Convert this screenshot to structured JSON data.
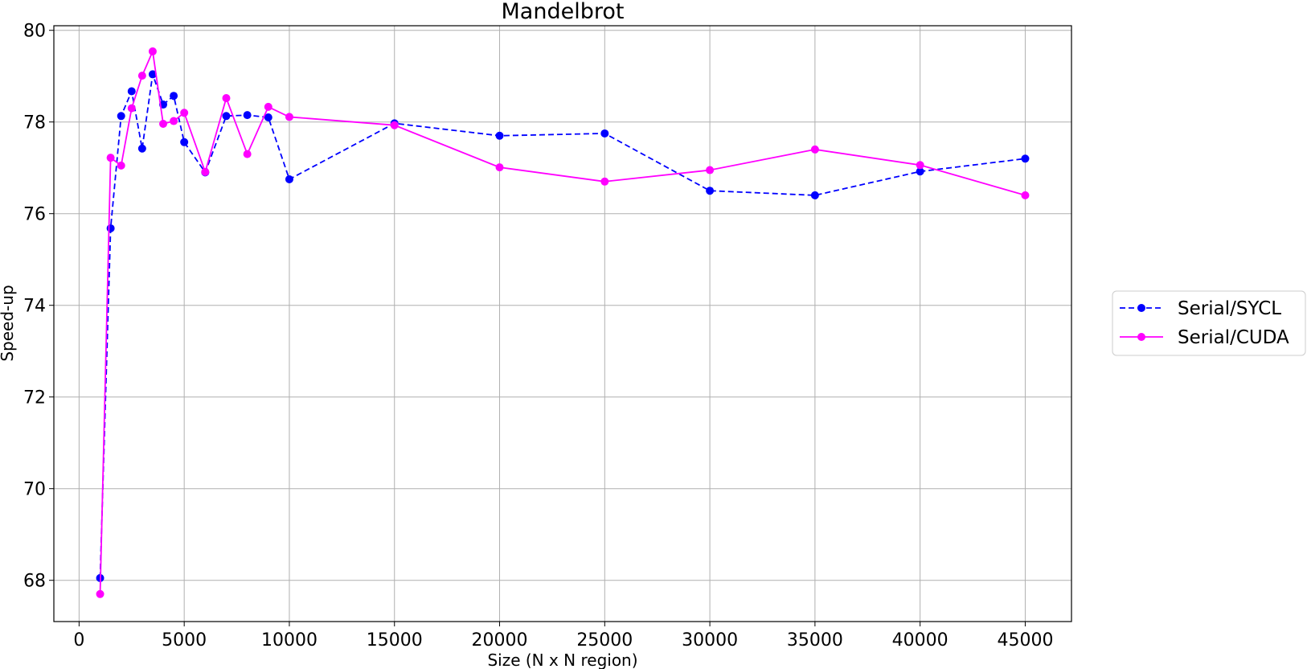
{
  "chart_data": {
    "type": "line",
    "title": "Mandelbrot",
    "xlabel": "Size (N x N region)",
    "ylabel": "Speed-up",
    "xlim": [
      -1200,
      47200
    ],
    "ylim": [
      67.1,
      80.1
    ],
    "xticks": [
      0,
      5000,
      10000,
      15000,
      20000,
      25000,
      30000,
      35000,
      40000,
      45000
    ],
    "yticks": [
      68,
      70,
      72,
      74,
      76,
      78,
      80
    ],
    "grid": true,
    "legend_position": "center-right, outside plot",
    "series": [
      {
        "name": "Serial/SYCL",
        "color": "#0000ff",
        "line_style": "dashed",
        "marker": "circle",
        "x": [
          1000,
          1500,
          2000,
          2500,
          3000,
          3500,
          4000,
          4500,
          5000,
          6000,
          7000,
          8000,
          9000,
          10000,
          15000,
          20000,
          25000,
          30000,
          35000,
          40000,
          45000
        ],
        "y": [
          68.05,
          75.68,
          78.13,
          78.67,
          77.42,
          79.04,
          78.38,
          78.57,
          77.56,
          76.9,
          78.13,
          78.15,
          78.1,
          76.75,
          77.97,
          77.7,
          77.75,
          76.5,
          76.4,
          76.92,
          77.2
        ]
      },
      {
        "name": "Serial/CUDA",
        "color": "#ff00ff",
        "line_style": "solid",
        "marker": "circle",
        "x": [
          1000,
          1500,
          2000,
          2500,
          3000,
          3500,
          4000,
          4500,
          5000,
          6000,
          7000,
          8000,
          9000,
          10000,
          15000,
          20000,
          25000,
          30000,
          35000,
          40000,
          45000
        ],
        "y": [
          67.7,
          77.22,
          77.05,
          78.3,
          79.01,
          79.54,
          77.96,
          78.02,
          78.2,
          76.91,
          78.52,
          77.3,
          78.33,
          78.11,
          77.93,
          77.01,
          76.7,
          76.95,
          77.4,
          77.06,
          76.4
        ]
      }
    ]
  }
}
